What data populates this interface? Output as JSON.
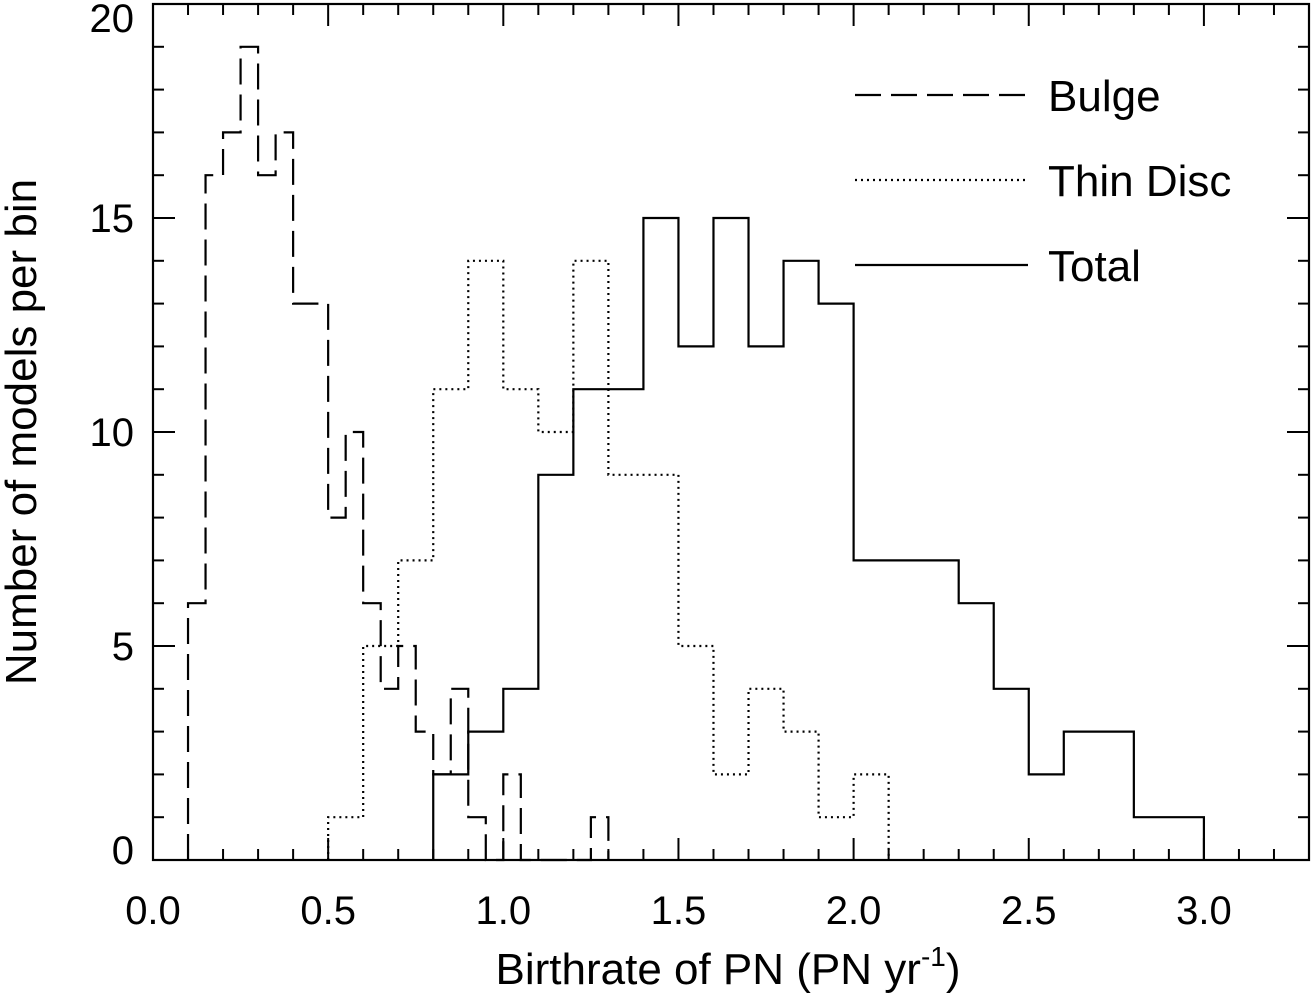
{
  "chart_data": {
    "type": "histogram",
    "xlabel": {
      "main": "Birthrate of PN (PN yr",
      "superscript": "-1",
      "suffix": ")"
    },
    "ylabel": "Number of models per bin",
    "xlim": [
      0.0,
      3.3
    ],
    "ylim": [
      0,
      20
    ],
    "xticks": [
      "0.0",
      "0.5",
      "1.0",
      "1.5",
      "2.0",
      "2.5",
      "3.0"
    ],
    "yticks": [
      "0",
      "5",
      "10",
      "15",
      "20"
    ],
    "grid": false,
    "legend_position": "top-right",
    "series": [
      {
        "name": "Bulge",
        "line_style": "dashed",
        "color": "#000000",
        "bin_width": 0.05,
        "bin_edges": [
          0.1,
          0.15,
          0.2,
          0.25,
          0.3,
          0.35,
          0.4,
          0.45,
          0.5,
          0.55,
          0.6,
          0.65,
          0.7,
          0.75,
          0.8,
          0.85,
          0.9,
          0.95,
          1.0,
          1.05,
          1.1,
          1.15,
          1.2,
          1.25,
          1.3
        ],
        "counts": [
          6,
          16,
          17,
          19,
          16,
          17,
          13,
          13,
          8,
          10,
          6,
          4,
          5,
          3,
          2,
          4,
          1,
          0,
          2,
          0,
          0,
          0,
          0,
          1
        ]
      },
      {
        "name": "Thin Disc",
        "line_style": "dotted",
        "color": "#000000",
        "bin_width": 0.1,
        "bin_edges": [
          0.5,
          0.6,
          0.7,
          0.8,
          0.9,
          1.0,
          1.1,
          1.2,
          1.3,
          1.4,
          1.5,
          1.6,
          1.7,
          1.8,
          1.9,
          2.0,
          2.1
        ],
        "counts": [
          1,
          5,
          7,
          11,
          14,
          11,
          10,
          14,
          9,
          9,
          5,
          2,
          4,
          3,
          1,
          2
        ]
      },
      {
        "name": "Total",
        "line_style": "solid",
        "color": "#000000",
        "bin_width": 0.1,
        "bin_edges": [
          0.8,
          0.9,
          1.0,
          1.1,
          1.2,
          1.3,
          1.4,
          1.5,
          1.6,
          1.7,
          1.8,
          1.9,
          2.0,
          2.1,
          2.2,
          2.3,
          2.4,
          2.5,
          2.6,
          2.7,
          2.8,
          2.9,
          3.0
        ],
        "counts": [
          2,
          3,
          4,
          9,
          11,
          11,
          15,
          12,
          15,
          12,
          14,
          13,
          7,
          7,
          7,
          6,
          4,
          2,
          3,
          3,
          1,
          1
        ]
      }
    ]
  }
}
